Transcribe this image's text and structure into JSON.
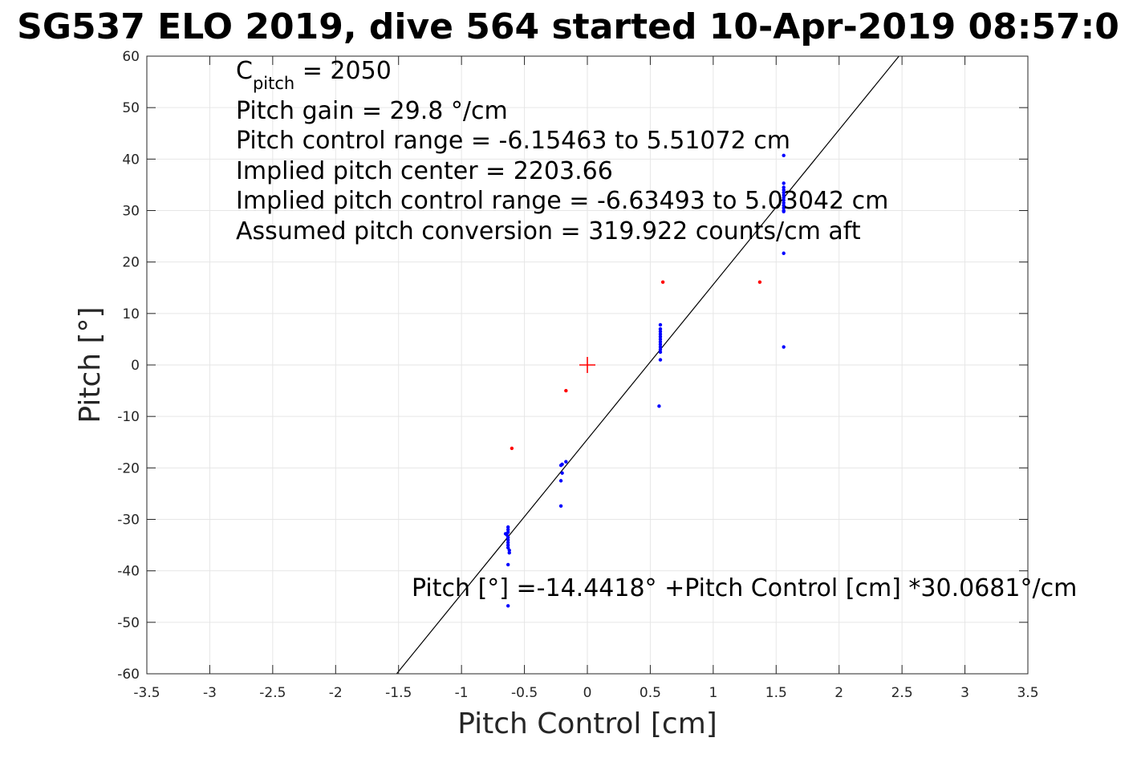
{
  "chart_data": {
    "type": "scatter",
    "title": "SG537 ELO 2019, dive 564 started 10-Apr-2019 08:57:0",
    "xlabel": "Pitch Control [cm]",
    "ylabel": "Pitch [°]",
    "xlim": [
      -3.5,
      3.5
    ],
    "ylim": [
      -60,
      60
    ],
    "grid": true,
    "x_ticks": [
      "-3.5",
      "-3",
      "-2.5",
      "-2",
      "-1.5",
      "-1",
      "-0.5",
      "0",
      "0.5",
      "1",
      "1.5",
      "2",
      "2.5",
      "3",
      "3.5"
    ],
    "y_ticks": [
      "60",
      "50",
      "40",
      "30",
      "20",
      "10",
      "0",
      "-10",
      "-20",
      "-30",
      "-40",
      "-50",
      "-60"
    ],
    "annotations": {
      "cpitch_main": "C",
      "cpitch_sub": "pitch",
      "cpitch_value": " = 2050",
      "lines": [
        "Pitch gain = 29.8 °/cm",
        "Pitch control range = -6.15463 to 5.51072 cm",
        "Implied pitch center = 2203.66",
        "Implied pitch control range = -6.63493 to 5.03042 cm",
        "Assumed pitch conversion = 319.922 counts/cm aft"
      ],
      "fit_equation": "Pitch [°] =-14.4418° +Pitch Control [cm] *30.0681°/cm"
    },
    "fit_line": {
      "intercept": -14.4418,
      "slope": 30.0681,
      "color": "#000000"
    },
    "center_marker": {
      "x": 0,
      "y": 0,
      "color": "#ff0000"
    },
    "series": [
      {
        "color": "#0000ff",
        "points": [
          [
            -0.64,
            -33
          ],
          [
            -0.65,
            -32.8
          ],
          [
            -0.63,
            -31.5
          ],
          [
            -0.63,
            -32
          ],
          [
            -0.63,
            -32.5
          ],
          [
            -0.63,
            -33.5
          ],
          [
            -0.63,
            -34
          ],
          [
            -0.63,
            -34.5
          ],
          [
            -0.63,
            -35
          ],
          [
            -0.63,
            -35.5
          ],
          [
            -0.62,
            -36
          ],
          [
            -0.62,
            -36.5
          ],
          [
            -0.63,
            -38.8
          ],
          [
            -0.63,
            -46.8
          ],
          [
            -0.21,
            -19.5
          ],
          [
            -0.2,
            -19.3
          ],
          [
            -0.17,
            -18.8
          ],
          [
            -0.2,
            -21
          ],
          [
            -0.21,
            -22.5
          ],
          [
            -0.21,
            -27.4
          ],
          [
            0.58,
            7.8
          ],
          [
            0.58,
            7
          ],
          [
            0.58,
            6.5
          ],
          [
            0.58,
            6
          ],
          [
            0.58,
            5.5
          ],
          [
            0.58,
            5
          ],
          [
            0.58,
            4.5
          ],
          [
            0.58,
            4
          ],
          [
            0.58,
            3.5
          ],
          [
            0.58,
            3
          ],
          [
            0.58,
            2.5
          ],
          [
            0.58,
            1
          ],
          [
            0.57,
            -8
          ],
          [
            1.56,
            40.7
          ],
          [
            1.56,
            35.3
          ],
          [
            1.56,
            34.5
          ],
          [
            1.56,
            34
          ],
          [
            1.56,
            33.5
          ],
          [
            1.56,
            33
          ],
          [
            1.56,
            32.5
          ],
          [
            1.56,
            32
          ],
          [
            1.56,
            31.5
          ],
          [
            1.56,
            31
          ],
          [
            1.56,
            30.5
          ],
          [
            1.56,
            30
          ],
          [
            1.56,
            29.8
          ],
          [
            1.56,
            21.7
          ],
          [
            1.56,
            3.5
          ]
        ]
      },
      {
        "color": "#ff0000",
        "points": [
          [
            -0.6,
            -16.2
          ],
          [
            -0.17,
            -5
          ],
          [
            0.6,
            16.1
          ],
          [
            1.37,
            16.1
          ]
        ]
      }
    ]
  }
}
